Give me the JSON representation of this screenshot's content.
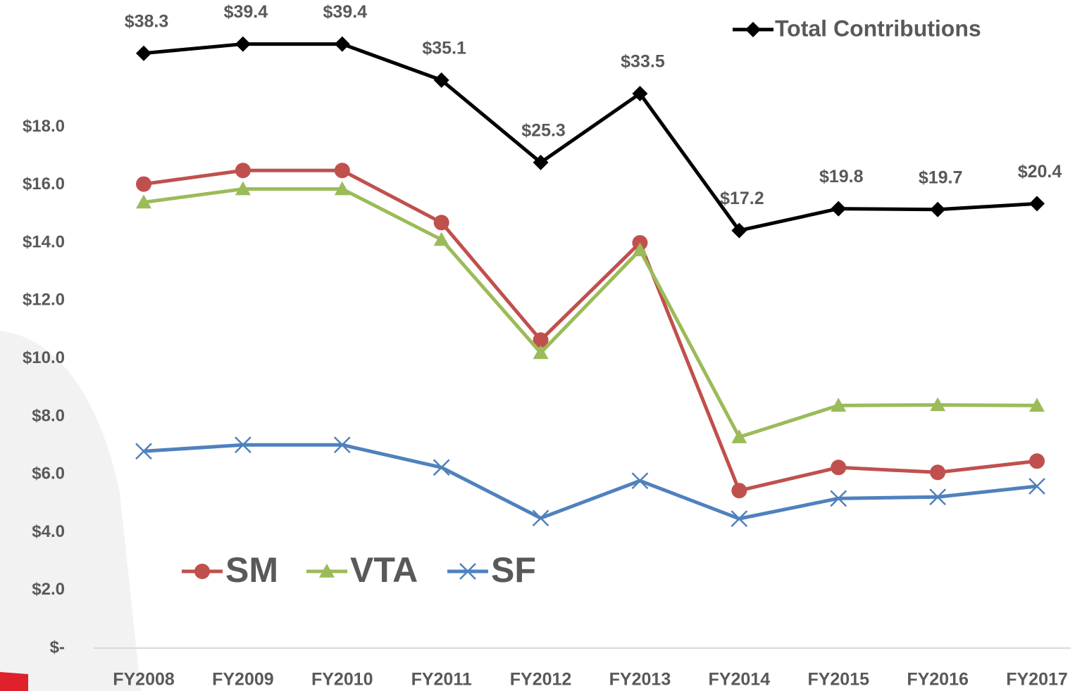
{
  "chart_data": {
    "type": "line",
    "categories": [
      "FY2008",
      "FY2009",
      "FY2010",
      "FY2011",
      "FY2012",
      "FY2013",
      "FY2014",
      "FY2015",
      "FY2016",
      "FY2017"
    ],
    "series": [
      {
        "name": "SM",
        "color": "#c0504d",
        "marker": "circle",
        "values": [
          16.03,
          16.5,
          16.5,
          14.7,
          10.64,
          14.0,
          5.44,
          6.24,
          6.07,
          6.46
        ]
      },
      {
        "name": "VTA",
        "color": "#9bbb59",
        "marker": "triangle",
        "values": [
          15.4,
          15.86,
          15.86,
          14.11,
          10.2,
          13.75,
          7.29,
          8.38,
          8.4,
          8.38
        ]
      },
      {
        "name": "SF",
        "color": "#4f81bd",
        "marker": "x",
        "values": [
          6.8,
          7.02,
          7.02,
          6.24,
          4.49,
          5.78,
          4.47,
          5.17,
          5.22,
          5.59
        ]
      },
      {
        "name": "Total Contributions",
        "color": "#000000",
        "marker": "diamond",
        "axis": "y2",
        "values": [
          38.3,
          39.4,
          39.4,
          35.1,
          25.3,
          33.5,
          17.2,
          19.8,
          19.7,
          20.4
        ],
        "value_labels": [
          "$38.3",
          "$39.4",
          "$39.4",
          "$35.1",
          "$25.3",
          "$33.5",
          "$17.2",
          "$19.8",
          "$19.7",
          "$20.4"
        ]
      }
    ],
    "ylim": [
      0,
      22
    ],
    "yticks": [
      {
        "value": 0,
        "label": "$-"
      },
      {
        "value": 2,
        "label": "$2.0"
      },
      {
        "value": 4,
        "label": "$4.0"
      },
      {
        "value": 6,
        "label": "$6.0"
      },
      {
        "value": 8,
        "label": "$8.0"
      },
      {
        "value": 10,
        "label": "$10.0"
      },
      {
        "value": 12,
        "label": "$12.0"
      },
      {
        "value": 14,
        "label": "$14.0"
      },
      {
        "value": 16,
        "label": "$16.0"
      },
      {
        "value": 18,
        "label": "$18.0"
      }
    ],
    "y2lim": [
      -32.5,
      43.3
    ],
    "grid": false
  }
}
